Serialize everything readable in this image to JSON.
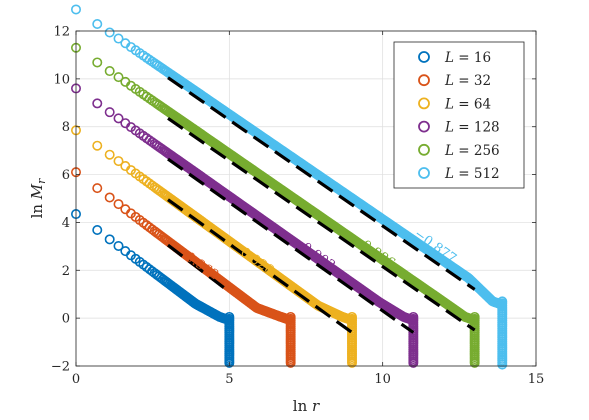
{
  "chart_data": {
    "type": "scatter",
    "xlabel": "ln r",
    "ylabel": "ln M_r",
    "xlim": [
      0,
      15
    ],
    "ylim": [
      -2,
      12
    ],
    "xticks": [
      0,
      5,
      10,
      15
    ],
    "yticks": [
      -2,
      0,
      2,
      4,
      6,
      8,
      10,
      12
    ],
    "grid": true,
    "legend_position": "top-right",
    "series": [
      {
        "name": "L = 16",
        "label": "L",
        "value": "16",
        "color": "#0072BD",
        "y0": 4.35,
        "slope": -0.962,
        "cutoff_x": 5.0,
        "plateau": 0.05
      },
      {
        "name": "L = 32",
        "label": "L",
        "value": "32",
        "color": "#D95319",
        "y0": 6.1,
        "slope": -0.962,
        "cutoff_x": 7.0,
        "plateau": 0.05
      },
      {
        "name": "L = 64",
        "label": "L",
        "value": "64",
        "color": "#EDB120",
        "y0": 7.85,
        "slope": -0.928,
        "cutoff_x": 9.0,
        "plateau": 0.05
      },
      {
        "name": "L = 128",
        "label": "L",
        "value": "128",
        "color": "#7E2F8E",
        "y0": 9.6,
        "slope": -0.903,
        "cutoff_x": 11.0,
        "plateau": 0.05
      },
      {
        "name": "L = 256",
        "label": "L",
        "value": "256",
        "color": "#77AC30",
        "y0": 11.3,
        "slope": -0.886,
        "cutoff_x": 13.0,
        "plateau": 0.05
      },
      {
        "name": "L = 512",
        "label": "L",
        "value": "512",
        "color": "#4DBEEE",
        "y0": 12.9,
        "slope": -0.877,
        "cutoff_x": 13.9,
        "plateau": 0.7
      }
    ],
    "fit_lines": [
      {
        "x1": 3.0,
        "y1": 3.05,
        "x2": 5.0,
        "y2": 1.1
      },
      {
        "x1": 3.0,
        "y1": 4.95,
        "x2": 9.0,
        "y2": -0.6
      },
      {
        "x1": 3.0,
        "y1": 6.65,
        "x2": 11.0,
        "y2": -0.6
      },
      {
        "x1": 3.0,
        "y1": 8.35,
        "x2": 13.0,
        "y2": -0.5
      },
      {
        "x1": 3.0,
        "y1": 10.05,
        "x2": 13.0,
        "y2": 1.2
      }
    ],
    "annotations": [
      {
        "text": "-0.962",
        "x": 3.25,
        "y": 2.75,
        "color": "#D95319"
      },
      {
        "text": "-0.928",
        "x": 5.05,
        "y": 2.95,
        "color": "#EDB120"
      },
      {
        "text": "-0.903",
        "x": 7.05,
        "y": 3.15,
        "color": "#7E2F8E"
      },
      {
        "text": "-0.886",
        "x": 9.0,
        "y": 3.25,
        "color": "#77AC30"
      },
      {
        "text": "-0.877",
        "x": 11.0,
        "y": 3.45,
        "color": "#4DBEEE"
      }
    ]
  }
}
